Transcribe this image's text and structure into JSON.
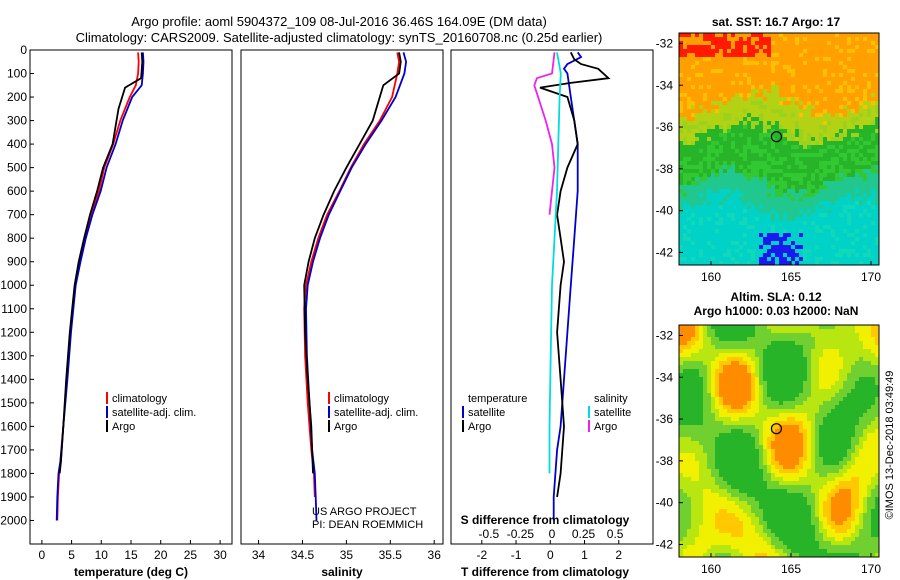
{
  "title_line1": "Argo profile: aoml 5904372_109 08-Jul-2016 36.46S 164.09E (DM data)",
  "title_line2": "Climatology: CARS2009. Satellite-adjusted climatology: synTS_20160708.nc (0.25d earlier)",
  "colors": {
    "climatology": "#ff0000",
    "satellite": "#0000cc",
    "argo": "#000000",
    "sat_salinity": "#00dddd",
    "argo_salinity": "#ee22ee"
  },
  "project_line1": "US ARGO PROJECT",
  "project_line2": "PI: DEAN ROEMMICH",
  "imos_stamp": "©IMOS 13-Dec-2018 03:49:49",
  "legend_pair_headers": {
    "temperature": "temperature",
    "salinity": "salinity"
  },
  "chart_data": [
    {
      "type": "line",
      "id": "temperature",
      "xlabel": "temperature (deg C)",
      "ylabel": "pressure",
      "xlim": [
        -2,
        32
      ],
      "ylim": [
        2100,
        0
      ],
      "xticks": [
        0,
        5,
        10,
        15,
        20,
        25,
        30
      ],
      "yticks": [
        0,
        100,
        200,
        300,
        400,
        500,
        600,
        700,
        800,
        900,
        1000,
        1100,
        1200,
        1300,
        1400,
        1500,
        1600,
        1700,
        1800,
        1900,
        2000
      ],
      "legend": [
        "climatology",
        "satellite-adj. clim.",
        "Argo"
      ],
      "series": [
        {
          "name": "climatology",
          "x": [
            16.2,
            16.3,
            16.2,
            15.8,
            14.8,
            13.2,
            12.0,
            10.5,
            9.6,
            8.2,
            7.2,
            6.3,
            5.6,
            4.8,
            4.2,
            3.6,
            3.2,
            2.9,
            2.7,
            2.6
          ],
          "y": [
            10,
            50,
            100,
            150,
            200,
            300,
            400,
            500,
            600,
            700,
            800,
            900,
            1000,
            1200,
            1400,
            1600,
            1750,
            1800,
            1900,
            2000
          ]
        },
        {
          "name": "satellite-adj. clim.",
          "x": [
            17.0,
            17.1,
            17.0,
            16.8,
            15.2,
            13.6,
            12.4,
            10.9,
            9.9,
            8.5,
            7.4,
            6.5,
            5.7,
            4.9,
            4.3,
            3.6,
            3.1,
            2.8,
            2.6,
            2.5
          ],
          "y": [
            10,
            50,
            100,
            150,
            200,
            300,
            400,
            500,
            600,
            700,
            800,
            900,
            1000,
            1200,
            1400,
            1600,
            1750,
            1800,
            1900,
            2000
          ]
        },
        {
          "name": "Argo",
          "x": [
            16.8,
            16.9,
            16.7,
            14.0,
            12.9,
            11.9,
            10.3,
            9.3,
            8.1,
            7.1,
            6.2,
            5.5,
            4.7,
            4.1,
            3.6,
            3.2,
            3.0
          ],
          "y": [
            10,
            50,
            120,
            160,
            250,
            400,
            500,
            600,
            700,
            800,
            900,
            1000,
            1200,
            1400,
            1600,
            1750,
            1800
          ]
        }
      ]
    },
    {
      "type": "line",
      "id": "salinity",
      "xlabel": "salinity",
      "xlim": [
        33.8,
        36.1
      ],
      "ylim": [
        2100,
        0
      ],
      "xticks": [
        34,
        34.5,
        35,
        35.5,
        36
      ],
      "legend": [
        "climatology",
        "satellite-adj. clim.",
        "Argo"
      ],
      "series": [
        {
          "name": "climatology",
          "x": [
            35.58,
            35.6,
            35.58,
            35.52,
            35.38,
            35.2,
            35.05,
            34.92,
            34.78,
            34.68,
            34.6,
            34.54,
            34.52,
            34.53,
            34.56,
            34.6,
            34.63,
            34.64
          ],
          "y": [
            10,
            50,
            100,
            200,
            300,
            400,
            500,
            600,
            700,
            800,
            900,
            1000,
            1100,
            1300,
            1500,
            1700,
            1800,
            1900
          ]
        },
        {
          "name": "satellite-adj. clim.",
          "x": [
            35.65,
            35.68,
            35.66,
            35.56,
            35.4,
            35.22,
            35.06,
            34.93,
            34.8,
            34.7,
            34.62,
            34.56,
            34.54,
            34.55,
            34.58,
            34.61,
            34.64,
            34.65,
            34.66
          ],
          "y": [
            10,
            50,
            100,
            200,
            300,
            400,
            500,
            600,
            700,
            800,
            900,
            1000,
            1100,
            1300,
            1500,
            1700,
            1800,
            1900,
            2000
          ]
        },
        {
          "name": "Argo",
          "x": [
            35.6,
            35.62,
            35.6,
            35.42,
            35.3,
            35.15,
            35.0,
            34.86,
            34.74,
            34.64,
            34.57,
            34.52,
            34.53,
            34.56,
            34.6,
            34.62
          ],
          "y": [
            10,
            50,
            100,
            150,
            300,
            400,
            500,
            600,
            700,
            800,
            900,
            1000,
            1200,
            1400,
            1600,
            1800
          ]
        }
      ]
    },
    {
      "type": "line",
      "id": "difference",
      "xlabel": "T difference from climatology",
      "xlabel_top": "S difference from climatology",
      "xlim": [
        -2.9,
        3.0
      ],
      "ylim": [
        2100,
        0
      ],
      "xticks": [
        -2,
        -1,
        0,
        1,
        2
      ],
      "xticks_s": [
        -0.5,
        -0.25,
        0,
        0.25,
        0.5
      ],
      "xticklabels_s": [
        "-0.5",
        "-0.25",
        "0",
        "0.25",
        "0.5"
      ],
      "legend": [
        "temperature",
        "satellite",
        "Argo",
        "salinity",
        "satellite",
        "Argo"
      ],
      "series": [
        {
          "name": "temperature satellite",
          "x": [
            0.8,
            0.9,
            0.5,
            0.4,
            0.5,
            0.6,
            0.8,
            0.8,
            0.7,
            0.6,
            0.5,
            0.4,
            0.3,
            0.2,
            0.15,
            0.1,
            0.1
          ],
          "y": [
            10,
            30,
            60,
            80,
            100,
            200,
            400,
            600,
            800,
            1000,
            1200,
            1400,
            1600,
            1700,
            1800,
            1900,
            2000
          ]
        },
        {
          "name": "temperature Argo",
          "x": [
            0.6,
            0.7,
            0.9,
            1.4,
            1.7,
            0.6,
            -0.3,
            0.5,
            0.7,
            0.8,
            0.5,
            0.3,
            0.2,
            0.3,
            0.4,
            0.3,
            0.2,
            0.3,
            0.4,
            0.3,
            0.2
          ],
          "y": [
            10,
            40,
            60,
            80,
            120,
            140,
            160,
            200,
            300,
            400,
            500,
            600,
            700,
            800,
            900,
            1000,
            1200,
            1400,
            1600,
            1800,
            1900
          ]
        },
        {
          "name": "salinity satellite",
          "x": [
            0.04,
            0.05,
            0.07,
            0.06,
            0.05,
            0.04,
            0.02,
            0.0,
            -0.01,
            -0.02,
            -0.02
          ],
          "y": [
            10,
            40,
            100,
            200,
            400,
            600,
            800,
            1000,
            1300,
            1600,
            1800
          ]
        },
        {
          "name": "salinity Argo",
          "x": [
            0.02,
            0.0,
            -0.12,
            -0.14,
            -0.05,
            0.0,
            0.02,
            0.0,
            -0.02
          ],
          "y": [
            10,
            100,
            120,
            150,
            300,
            400,
            500,
            600,
            700
          ]
        }
      ]
    },
    {
      "type": "heatmap",
      "id": "sst-map",
      "title": "sat. SST: 16.7 Argo: 17",
      "xticks": [
        160,
        165,
        170
      ],
      "yticks": [
        -32,
        -34,
        -36,
        -38,
        -40,
        -42
      ],
      "xlim": [
        158,
        170.5
      ],
      "ylim": [
        -42.6,
        -31.5
      ],
      "marker": [
        164.09,
        -36.46
      ]
    },
    {
      "type": "heatmap",
      "id": "sla-map",
      "title_line1": "Altim. SLA: 0.12",
      "title_line2": "Argo h1000: 0.03 h2000: NaN",
      "xticks": [
        160,
        165,
        170
      ],
      "yticks": [
        -32,
        -34,
        -36,
        -38,
        -40,
        -42
      ],
      "xlim": [
        158,
        170.5
      ],
      "ylim": [
        -42.6,
        -31.5
      ],
      "marker": [
        164.09,
        -36.46
      ]
    }
  ]
}
